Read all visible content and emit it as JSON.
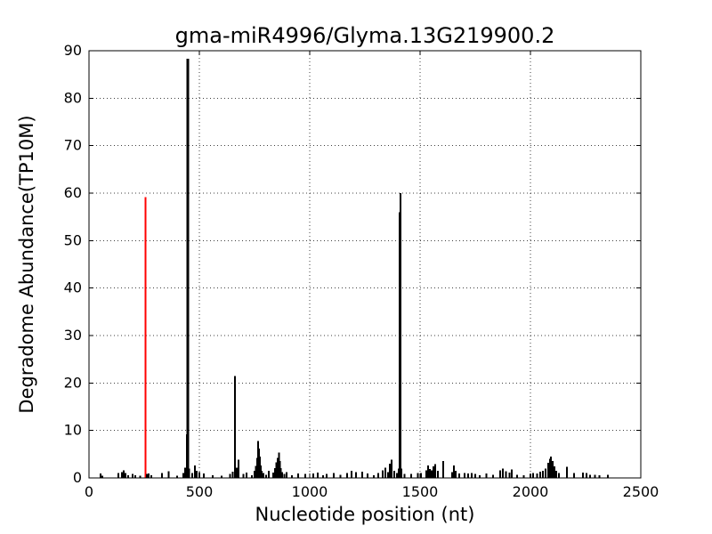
{
  "figure": {
    "title": "gma-miR4996/Glyma.13G219900.2",
    "xlabel": "Nucleotide position (nt)",
    "ylabel": "Degradome Abundance(TP10M)"
  },
  "chart_data": {
    "type": "bar",
    "title": "gma-miR4996/Glyma.13G219900.2",
    "xlabel": "Nucleotide position (nt)",
    "ylabel": "Degradome Abundance(TP10M)",
    "xlim": [
      0,
      2500
    ],
    "ylim": [
      0,
      90
    ],
    "xticks": [
      0,
      500,
      1000,
      1500,
      2000,
      2500
    ],
    "yticks": [
      0,
      10,
      20,
      30,
      40,
      50,
      60,
      70,
      80,
      90
    ],
    "grid": "dotted",
    "grid_color": "#000000",
    "axis_color": "#000000",
    "bar_color": "#000000",
    "highlight_color": "#ff0000",
    "main_peaks": [
      {
        "position": 256,
        "value": 59.2,
        "color": "#ff0000"
      },
      {
        "position": 448,
        "value": 88.3,
        "color": "#000000"
      },
      {
        "position": 661,
        "value": 21.5,
        "color": "#000000"
      },
      {
        "position": 1411,
        "value": 60.0,
        "color": "#000000"
      }
    ],
    "bars": [
      [
        52,
        0.9
      ],
      [
        60,
        0.5
      ],
      [
        133,
        1.0
      ],
      [
        150,
        1.2
      ],
      [
        158,
        1.6
      ],
      [
        165,
        1.0
      ],
      [
        177,
        0.6
      ],
      [
        198,
        0.8
      ],
      [
        210,
        0.6
      ],
      [
        232,
        0.5
      ],
      [
        256,
        59.2,
        "#ff0000",
        2
      ],
      [
        262,
        0.8
      ],
      [
        270,
        0.9
      ],
      [
        283,
        0.6
      ],
      [
        330,
        1.0
      ],
      [
        360,
        1.4
      ],
      [
        400,
        0.5
      ],
      [
        428,
        1.0
      ],
      [
        436,
        2.2
      ],
      [
        444,
        9.2
      ],
      [
        448,
        88.3,
        null,
        3
      ],
      [
        453,
        2.0
      ],
      [
        468,
        1.0
      ],
      [
        480,
        2.6
      ],
      [
        488,
        1.5
      ],
      [
        500,
        1.2
      ],
      [
        520,
        0.9
      ],
      [
        560,
        0.6
      ],
      [
        600,
        0.5
      ],
      [
        640,
        0.8
      ],
      [
        652,
        1.3
      ],
      [
        661,
        21.5
      ],
      [
        669,
        2.2
      ],
      [
        677,
        3.8
      ],
      [
        700,
        0.8
      ],
      [
        713,
        1.1
      ],
      [
        737,
        0.6
      ],
      [
        750,
        1.5
      ],
      [
        756,
        2.5
      ],
      [
        762,
        4.2
      ],
      [
        766,
        7.8
      ],
      [
        771,
        6.2
      ],
      [
        775,
        4.5
      ],
      [
        779,
        2.6
      ],
      [
        783,
        1.5
      ],
      [
        790,
        1.0
      ],
      [
        802,
        0.7
      ],
      [
        814,
        1.5
      ],
      [
        835,
        1.1
      ],
      [
        843,
        2.1
      ],
      [
        849,
        3.3
      ],
      [
        855,
        4.2
      ],
      [
        860,
        5.3
      ],
      [
        864,
        3.6
      ],
      [
        868,
        2.1
      ],
      [
        876,
        1.2
      ],
      [
        886,
        0.8
      ],
      [
        896,
        1.2
      ],
      [
        920,
        0.6
      ],
      [
        948,
        0.9
      ],
      [
        980,
        0.8
      ],
      [
        1016,
        0.9
      ],
      [
        1036,
        1.1
      ],
      [
        1060,
        0.6
      ],
      [
        1077,
        0.8
      ],
      [
        1109,
        1.0
      ],
      [
        1140,
        0.7
      ],
      [
        1169,
        1.0
      ],
      [
        1190,
        1.5
      ],
      [
        1210,
        1.2
      ],
      [
        1238,
        1.3
      ],
      [
        1262,
        0.9
      ],
      [
        1290,
        0.6
      ],
      [
        1310,
        1.0
      ],
      [
        1330,
        1.6
      ],
      [
        1343,
        2.2
      ],
      [
        1355,
        1.2
      ],
      [
        1363,
        3.0
      ],
      [
        1371,
        3.8
      ],
      [
        1383,
        1.5
      ],
      [
        1395,
        1.0
      ],
      [
        1404,
        2.0
      ],
      [
        1408,
        56.0
      ],
      [
        1411,
        60.0
      ],
      [
        1416,
        2.0
      ],
      [
        1430,
        0.8
      ],
      [
        1460,
        0.8
      ],
      [
        1490,
        1.0
      ],
      [
        1505,
        1.0
      ],
      [
        1528,
        1.6
      ],
      [
        1536,
        2.6
      ],
      [
        1544,
        1.9
      ],
      [
        1552,
        1.6
      ],
      [
        1560,
        2.4
      ],
      [
        1569,
        2.9
      ],
      [
        1581,
        1.5
      ],
      [
        1605,
        3.6
      ],
      [
        1645,
        1.2
      ],
      [
        1653,
        2.6
      ],
      [
        1661,
        1.5
      ],
      [
        1677,
        0.9
      ],
      [
        1701,
        1.0
      ],
      [
        1717,
        0.9
      ],
      [
        1733,
        1.0
      ],
      [
        1749,
        0.8
      ],
      [
        1770,
        0.6
      ],
      [
        1800,
        0.9
      ],
      [
        1830,
        0.7
      ],
      [
        1863,
        1.6
      ],
      [
        1875,
        2.0
      ],
      [
        1890,
        1.4
      ],
      [
        1905,
        1.1
      ],
      [
        1916,
        1.8
      ],
      [
        1940,
        0.7
      ],
      [
        1970,
        0.6
      ],
      [
        2000,
        0.8
      ],
      [
        2012,
        1.0
      ],
      [
        2030,
        0.9
      ],
      [
        2044,
        1.3
      ],
      [
        2056,
        1.5
      ],
      [
        2068,
        2.0
      ],
      [
        2080,
        3.2
      ],
      [
        2088,
        4.0
      ],
      [
        2092,
        4.5
      ],
      [
        2100,
        3.6
      ],
      [
        2108,
        2.4
      ],
      [
        2117,
        1.5
      ],
      [
        2129,
        1.0
      ],
      [
        2165,
        2.3
      ],
      [
        2198,
        1.0
      ],
      [
        2238,
        1.1
      ],
      [
        2255,
        1.0
      ],
      [
        2270,
        0.7
      ],
      [
        2292,
        0.7
      ],
      [
        2312,
        0.6
      ],
      [
        2351,
        0.7
      ]
    ]
  }
}
